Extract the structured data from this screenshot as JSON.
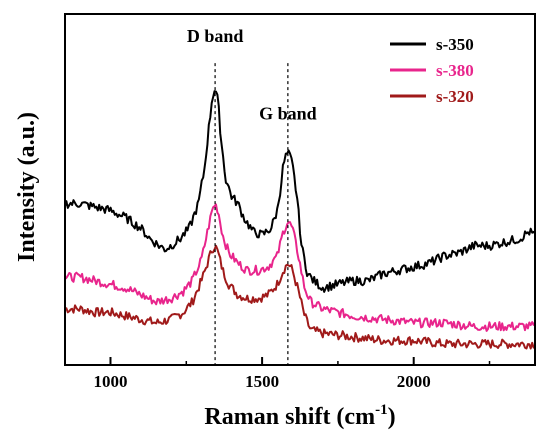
{
  "chart_data": {
    "type": "line",
    "xlabel": "Raman shift (cm",
    "xlabel_sup": "-1",
    "xlabel_end": ")",
    "ylabel": "Intensity (a.u.)",
    "xlim": [
      850,
      2400
    ],
    "ylim": [
      0,
      100
    ],
    "y_ticks_shown": false,
    "x_ticks": [
      1000,
      1500,
      2000
    ],
    "x_tick_labels": [
      "1000",
      "1500",
      "2000"
    ],
    "grid": false,
    "legend_position": "top-right",
    "annotations": [
      {
        "text": "D band",
        "x": 1345,
        "y": 92
      },
      {
        "text": "G band",
        "x": 1585,
        "y": 70
      }
    ],
    "reference_lines": [
      1345,
      1585
    ],
    "series": [
      {
        "name": "s-350",
        "color": "#000000",
        "points": [
          [
            850,
            46
          ],
          [
            900,
            46
          ],
          [
            950,
            45
          ],
          [
            1000,
            44
          ],
          [
            1050,
            42
          ],
          [
            1100,
            39
          ],
          [
            1130,
            36
          ],
          [
            1160,
            34
          ],
          [
            1180,
            33
          ],
          [
            1200,
            34
          ],
          [
            1230,
            36
          ],
          [
            1260,
            39
          ],
          [
            1290,
            46
          ],
          [
            1310,
            56
          ],
          [
            1325,
            68
          ],
          [
            1335,
            76
          ],
          [
            1345,
            79
          ],
          [
            1355,
            75
          ],
          [
            1365,
            64
          ],
          [
            1380,
            53
          ],
          [
            1400,
            48
          ],
          [
            1420,
            46
          ],
          [
            1440,
            42
          ],
          [
            1470,
            38
          ],
          [
            1500,
            37
          ],
          [
            1530,
            39
          ],
          [
            1550,
            44
          ],
          [
            1560,
            50
          ],
          [
            1570,
            57
          ],
          [
            1580,
            60
          ],
          [
            1590,
            60
          ],
          [
            1600,
            57
          ],
          [
            1615,
            48
          ],
          [
            1630,
            34
          ],
          [
            1650,
            26
          ],
          [
            1670,
            24
          ],
          [
            1700,
            22
          ],
          [
            1750,
            23
          ],
          [
            1800,
            24
          ],
          [
            1850,
            24
          ],
          [
            1900,
            26
          ],
          [
            1950,
            27
          ],
          [
            2000,
            28
          ],
          [
            2050,
            29
          ],
          [
            2100,
            31
          ],
          [
            2150,
            32
          ],
          [
            2200,
            34
          ],
          [
            2250,
            34
          ],
          [
            2300,
            35
          ],
          [
            2350,
            36
          ],
          [
            2380,
            38
          ],
          [
            2400,
            37
          ]
        ]
      },
      {
        "name": "s-380",
        "color": "#e8258c",
        "points": [
          [
            850,
            25
          ],
          [
            900,
            25
          ],
          [
            950,
            24
          ],
          [
            1000,
            23
          ],
          [
            1050,
            22
          ],
          [
            1100,
            20
          ],
          [
            1150,
            18
          ],
          [
            1200,
            19
          ],
          [
            1240,
            21
          ],
          [
            1270,
            24
          ],
          [
            1300,
            30
          ],
          [
            1320,
            38
          ],
          [
            1335,
            44
          ],
          [
            1345,
            46
          ],
          [
            1355,
            44
          ],
          [
            1370,
            37
          ],
          [
            1390,
            32
          ],
          [
            1420,
            29
          ],
          [
            1450,
            27
          ],
          [
            1490,
            27
          ],
          [
            1520,
            28
          ],
          [
            1550,
            31
          ],
          [
            1570,
            38
          ],
          [
            1585,
            41
          ],
          [
            1600,
            39
          ],
          [
            1620,
            31
          ],
          [
            1640,
            22
          ],
          [
            1660,
            18
          ],
          [
            1700,
            16
          ],
          [
            1800,
            14
          ],
          [
            1900,
            13
          ],
          [
            2000,
            12
          ],
          [
            2100,
            12
          ],
          [
            2200,
            11
          ],
          [
            2300,
            11
          ],
          [
            2400,
            11
          ]
        ]
      },
      {
        "name": "s-320",
        "color": "#a01a1a",
        "points": [
          [
            850,
            16
          ],
          [
            900,
            16
          ],
          [
            950,
            15
          ],
          [
            1000,
            15
          ],
          [
            1050,
            14
          ],
          [
            1100,
            13
          ],
          [
            1150,
            12
          ],
          [
            1200,
            13
          ],
          [
            1240,
            15
          ],
          [
            1270,
            18
          ],
          [
            1300,
            24
          ],
          [
            1320,
            29
          ],
          [
            1335,
            33
          ],
          [
            1345,
            34
          ],
          [
            1355,
            32
          ],
          [
            1370,
            27
          ],
          [
            1390,
            23
          ],
          [
            1420,
            20
          ],
          [
            1450,
            19
          ],
          [
            1490,
            19
          ],
          [
            1520,
            20
          ],
          [
            1550,
            23
          ],
          [
            1570,
            27
          ],
          [
            1585,
            29
          ],
          [
            1600,
            27
          ],
          [
            1620,
            21
          ],
          [
            1640,
            14
          ],
          [
            1660,
            10
          ],
          [
            1700,
            9
          ],
          [
            1800,
            8
          ],
          [
            1900,
            7
          ],
          [
            2000,
            7
          ],
          [
            2100,
            6
          ],
          [
            2200,
            6
          ],
          [
            2300,
            6
          ],
          [
            2400,
            6
          ]
        ]
      }
    ]
  }
}
